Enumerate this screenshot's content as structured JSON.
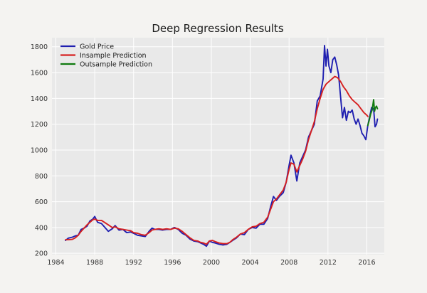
{
  "chart_data": {
    "type": "line",
    "title": "Deep Regression Results",
    "xlabel": "",
    "ylabel": "",
    "xlim": [
      1983.6,
      2017.8
    ],
    "ylim": [
      190,
      1870
    ],
    "xticks": [
      1984,
      1988,
      1992,
      1996,
      2000,
      2004,
      2008,
      2012,
      2016
    ],
    "yticks": [
      200,
      400,
      600,
      800,
      1000,
      1200,
      1400,
      1600,
      1800
    ],
    "grid": true,
    "legend_position": "top-left",
    "colors": {
      "plot_background": "#e9e9e9",
      "grid": "#ffffff",
      "gold": "#1f1fb0",
      "insample": "#d62020",
      "outsample": "#0f7a0f"
    },
    "series": [
      {
        "name": "Gold Price",
        "color": "#1f1fb0",
        "points": [
          [
            1985.0,
            300
          ],
          [
            1985.3,
            318
          ],
          [
            1985.7,
            325
          ],
          [
            1986.0,
            335
          ],
          [
            1986.3,
            340
          ],
          [
            1986.6,
            385
          ],
          [
            1986.9,
            395
          ],
          [
            1987.2,
            410
          ],
          [
            1987.5,
            450
          ],
          [
            1987.8,
            465
          ],
          [
            1988.0,
            485
          ],
          [
            1988.3,
            440
          ],
          [
            1988.7,
            430
          ],
          [
            1989.0,
            405
          ],
          [
            1989.4,
            370
          ],
          [
            1989.8,
            390
          ],
          [
            1990.1,
            415
          ],
          [
            1990.5,
            380
          ],
          [
            1990.9,
            385
          ],
          [
            1991.3,
            360
          ],
          [
            1991.7,
            365
          ],
          [
            1992.0,
            355
          ],
          [
            1992.4,
            340
          ],
          [
            1992.8,
            335
          ],
          [
            1993.2,
            330
          ],
          [
            1993.6,
            370
          ],
          [
            1993.9,
            395
          ],
          [
            1994.2,
            385
          ],
          [
            1994.6,
            385
          ],
          [
            1995.0,
            380
          ],
          [
            1995.4,
            385
          ],
          [
            1995.8,
            385
          ],
          [
            1996.2,
            400
          ],
          [
            1996.6,
            385
          ],
          [
            1997.0,
            355
          ],
          [
            1997.4,
            340
          ],
          [
            1997.8,
            310
          ],
          [
            1998.2,
            295
          ],
          [
            1998.6,
            290
          ],
          [
            1998.9,
            280
          ],
          [
            1999.2,
            270
          ],
          [
            1999.5,
            255
          ],
          [
            1999.8,
            295
          ],
          [
            2000.1,
            285
          ],
          [
            2000.4,
            280
          ],
          [
            2000.8,
            270
          ],
          [
            2001.2,
            265
          ],
          [
            2001.6,
            270
          ],
          [
            2001.9,
            285
          ],
          [
            2002.2,
            300
          ],
          [
            2002.6,
            320
          ],
          [
            2003.0,
            350
          ],
          [
            2003.4,
            345
          ],
          [
            2003.8,
            385
          ],
          [
            2004.2,
            400
          ],
          [
            2004.6,
            395
          ],
          [
            2005.0,
            425
          ],
          [
            2005.4,
            425
          ],
          [
            2005.8,
            470
          ],
          [
            2006.1,
            560
          ],
          [
            2006.4,
            640
          ],
          [
            2006.7,
            610
          ],
          [
            2007.0,
            640
          ],
          [
            2007.4,
            670
          ],
          [
            2007.7,
            750
          ],
          [
            2008.0,
            880
          ],
          [
            2008.2,
            960
          ],
          [
            2008.5,
            900
          ],
          [
            2008.8,
            760
          ],
          [
            2009.1,
            900
          ],
          [
            2009.4,
            950
          ],
          [
            2009.7,
            1000
          ],
          [
            2010.0,
            1100
          ],
          [
            2010.3,
            1150
          ],
          [
            2010.6,
            1200
          ],
          [
            2010.9,
            1380
          ],
          [
            2011.2,
            1420
          ],
          [
            2011.5,
            1550
          ],
          [
            2011.65,
            1810
          ],
          [
            2011.8,
            1650
          ],
          [
            2011.95,
            1780
          ],
          [
            2012.1,
            1650
          ],
          [
            2012.3,
            1600
          ],
          [
            2012.5,
            1700
          ],
          [
            2012.7,
            1720
          ],
          [
            2012.9,
            1660
          ],
          [
            2013.1,
            1580
          ],
          [
            2013.3,
            1410
          ],
          [
            2013.5,
            1250
          ],
          [
            2013.7,
            1330
          ],
          [
            2013.9,
            1230
          ],
          [
            2014.1,
            1300
          ],
          [
            2014.3,
            1290
          ],
          [
            2014.5,
            1310
          ],
          [
            2014.7,
            1240
          ],
          [
            2014.9,
            1200
          ],
          [
            2015.1,
            1240
          ],
          [
            2015.3,
            1190
          ],
          [
            2015.5,
            1130
          ],
          [
            2015.7,
            1110
          ],
          [
            2015.9,
            1080
          ],
          [
            2016.1,
            1190
          ],
          [
            2016.3,
            1260
          ],
          [
            2016.5,
            1330
          ],
          [
            2016.7,
            1320
          ],
          [
            2016.85,
            1180
          ],
          [
            2017.0,
            1200
          ],
          [
            2017.1,
            1240
          ]
        ]
      },
      {
        "name": "Insample Prediction",
        "color": "#d62020",
        "points": [
          [
            1985.0,
            305
          ],
          [
            1985.3,
            305
          ],
          [
            1985.7,
            308
          ],
          [
            1986.0,
            320
          ],
          [
            1986.3,
            340
          ],
          [
            1986.6,
            370
          ],
          [
            1986.9,
            395
          ],
          [
            1987.2,
            420
          ],
          [
            1987.5,
            440
          ],
          [
            1987.8,
            460
          ],
          [
            1988.0,
            465
          ],
          [
            1988.3,
            455
          ],
          [
            1988.7,
            455
          ],
          [
            1989.0,
            440
          ],
          [
            1989.4,
            420
          ],
          [
            1989.8,
            400
          ],
          [
            1990.1,
            405
          ],
          [
            1990.5,
            390
          ],
          [
            1990.9,
            385
          ],
          [
            1991.3,
            380
          ],
          [
            1991.7,
            375
          ],
          [
            1992.0,
            360
          ],
          [
            1992.4,
            355
          ],
          [
            1992.8,
            345
          ],
          [
            1993.2,
            340
          ],
          [
            1993.6,
            360
          ],
          [
            1993.9,
            380
          ],
          [
            1994.2,
            385
          ],
          [
            1994.6,
            390
          ],
          [
            1995.0,
            385
          ],
          [
            1995.4,
            390
          ],
          [
            1995.8,
            385
          ],
          [
            1996.2,
            395
          ],
          [
            1996.6,
            390
          ],
          [
            1997.0,
            370
          ],
          [
            1997.4,
            345
          ],
          [
            1997.8,
            320
          ],
          [
            1998.2,
            300
          ],
          [
            1998.6,
            295
          ],
          [
            1998.9,
            285
          ],
          [
            1999.2,
            280
          ],
          [
            1999.5,
            270
          ],
          [
            1999.8,
            295
          ],
          [
            2000.1,
            300
          ],
          [
            2000.4,
            290
          ],
          [
            2000.8,
            280
          ],
          [
            2001.2,
            275
          ],
          [
            2001.6,
            275
          ],
          [
            2001.9,
            285
          ],
          [
            2002.2,
            305
          ],
          [
            2002.6,
            325
          ],
          [
            2003.0,
            350
          ],
          [
            2003.4,
            360
          ],
          [
            2003.8,
            385
          ],
          [
            2004.2,
            405
          ],
          [
            2004.6,
            410
          ],
          [
            2005.0,
            430
          ],
          [
            2005.4,
            440
          ],
          [
            2005.8,
            480
          ],
          [
            2006.1,
            540
          ],
          [
            2006.4,
            600
          ],
          [
            2006.7,
            620
          ],
          [
            2007.0,
            650
          ],
          [
            2007.4,
            690
          ],
          [
            2007.7,
            750
          ],
          [
            2008.0,
            850
          ],
          [
            2008.2,
            900
          ],
          [
            2008.5,
            890
          ],
          [
            2008.8,
            830
          ],
          [
            2009.1,
            880
          ],
          [
            2009.4,
            930
          ],
          [
            2009.7,
            990
          ],
          [
            2010.0,
            1080
          ],
          [
            2010.3,
            1150
          ],
          [
            2010.6,
            1220
          ],
          [
            2010.9,
            1320
          ],
          [
            2011.2,
            1400
          ],
          [
            2011.5,
            1470
          ],
          [
            2011.8,
            1510
          ],
          [
            2012.1,
            1530
          ],
          [
            2012.4,
            1550
          ],
          [
            2012.7,
            1570
          ],
          [
            2013.0,
            1560
          ],
          [
            2013.3,
            1530
          ],
          [
            2013.6,
            1490
          ],
          [
            2013.9,
            1460
          ],
          [
            2014.2,
            1420
          ],
          [
            2014.5,
            1390
          ],
          [
            2014.8,
            1370
          ],
          [
            2015.1,
            1350
          ],
          [
            2015.4,
            1320
          ],
          [
            2015.7,
            1290
          ],
          [
            2016.0,
            1270
          ],
          [
            2016.1,
            1260
          ]
        ]
      },
      {
        "name": "Outsample Prediction",
        "color": "#0f7a0f",
        "points": [
          [
            2016.1,
            1190
          ],
          [
            2016.25,
            1230
          ],
          [
            2016.4,
            1280
          ],
          [
            2016.55,
            1310
          ],
          [
            2016.7,
            1390
          ],
          [
            2016.8,
            1300
          ],
          [
            2016.9,
            1330
          ],
          [
            2017.0,
            1340
          ],
          [
            2017.1,
            1320
          ]
        ]
      }
    ]
  }
}
